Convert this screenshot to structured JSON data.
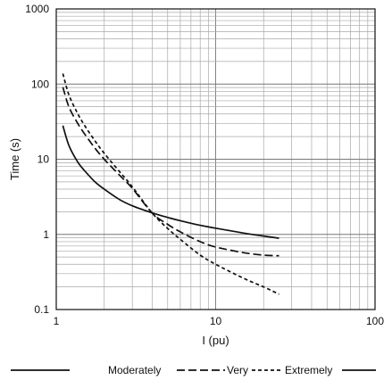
{
  "chart_data": {
    "type": "line",
    "xlabel": "I (pu)",
    "ylabel": "Time (s)",
    "xscale": "log",
    "yscale": "log",
    "xlim": [
      1,
      100
    ],
    "ylim": [
      0.1,
      1000
    ],
    "grid": true,
    "legend_position": "bottom",
    "x_ticks": [
      {
        "value": 1,
        "label": "1"
      },
      {
        "value": 10,
        "label": "10"
      },
      {
        "value": 100,
        "label": "100"
      }
    ],
    "y_ticks": [
      {
        "value": 1000,
        "label": "1000"
      },
      {
        "value": 100,
        "label": "100"
      },
      {
        "value": 10,
        "label": "10"
      },
      {
        "value": 1,
        "label": "1"
      },
      {
        "value": 0.1,
        "label": "0.1"
      }
    ],
    "series": [
      {
        "name": "Moderately",
        "style": "solid",
        "color": "#111111",
        "x": [
          1.1,
          1.2,
          1.35,
          1.5,
          1.75,
          2,
          2.5,
          3,
          4,
          5,
          6,
          8,
          10,
          15,
          20,
          25
        ],
        "y": [
          28.0,
          15.3,
          9.5,
          7.1,
          5.0,
          4.0,
          2.9,
          2.4,
          1.93,
          1.68,
          1.52,
          1.32,
          1.21,
          1.04,
          0.95,
          0.89
        ]
      },
      {
        "name": "Very",
        "style": "dashed",
        "color": "#111111",
        "x": [
          1.1,
          1.2,
          1.35,
          1.5,
          1.75,
          2,
          2.5,
          3,
          4,
          5,
          6,
          8,
          10,
          15,
          20,
          25
        ],
        "y": [
          91.0,
          50.0,
          31.0,
          22.0,
          14.0,
          10.0,
          6.1,
          4.1,
          1.92,
          1.36,
          1.08,
          0.8,
          0.68,
          0.57,
          0.53,
          0.52
        ]
      },
      {
        "name": "Extremely",
        "style": "dotted",
        "color": "#111111",
        "x": [
          1.1,
          1.2,
          1.35,
          1.5,
          1.75,
          2,
          2.5,
          3,
          4,
          5,
          6,
          8,
          10,
          15,
          20,
          25
        ],
        "y": [
          138.0,
          72.0,
          42.0,
          28.5,
          17.5,
          12.0,
          6.8,
          4.3,
          1.92,
          1.2,
          0.86,
          0.53,
          0.4,
          0.26,
          0.2,
          0.16
        ]
      }
    ],
    "legend_entries": [
      "Moderately",
      "Very",
      "Extremely"
    ]
  }
}
